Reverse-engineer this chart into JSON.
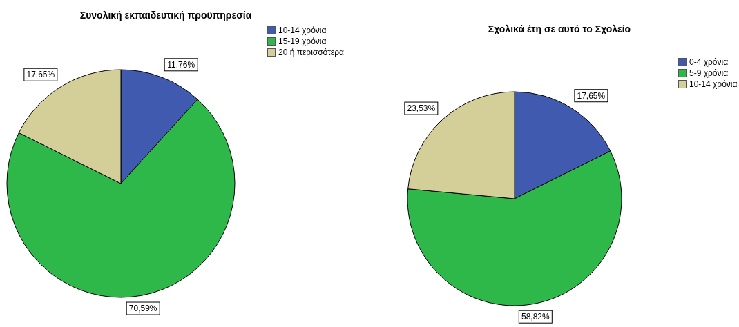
{
  "chart_data": [
    {
      "type": "pie",
      "title": "Συνολική εκπαιδευτική προϋπηρεσία",
      "categories": [
        "10-14 χρόνια",
        "15-19 χρόνια",
        "20 ή περισσότερα"
      ],
      "values": [
        11.76,
        70.59,
        17.65
      ],
      "colors": [
        "#3f5aae",
        "#2eb84a",
        "#d4cf98"
      ],
      "value_labels": [
        "11,76%",
        "70,59%",
        "17,65%"
      ],
      "legend": "top right"
    },
    {
      "type": "pie",
      "title": "Σχολικά έτη σε αυτό το Σχολείο",
      "categories": [
        "0-4 χρόνια",
        "5-9 χρόνια",
        "10-14 χρόνια"
      ],
      "values": [
        17.65,
        58.82,
        23.53
      ],
      "colors": [
        "#3f5aae",
        "#2eb84a",
        "#d4cf98"
      ],
      "value_labels": [
        "17,65%",
        "58,82%",
        "23,53%"
      ],
      "legend": "top right"
    }
  ]
}
